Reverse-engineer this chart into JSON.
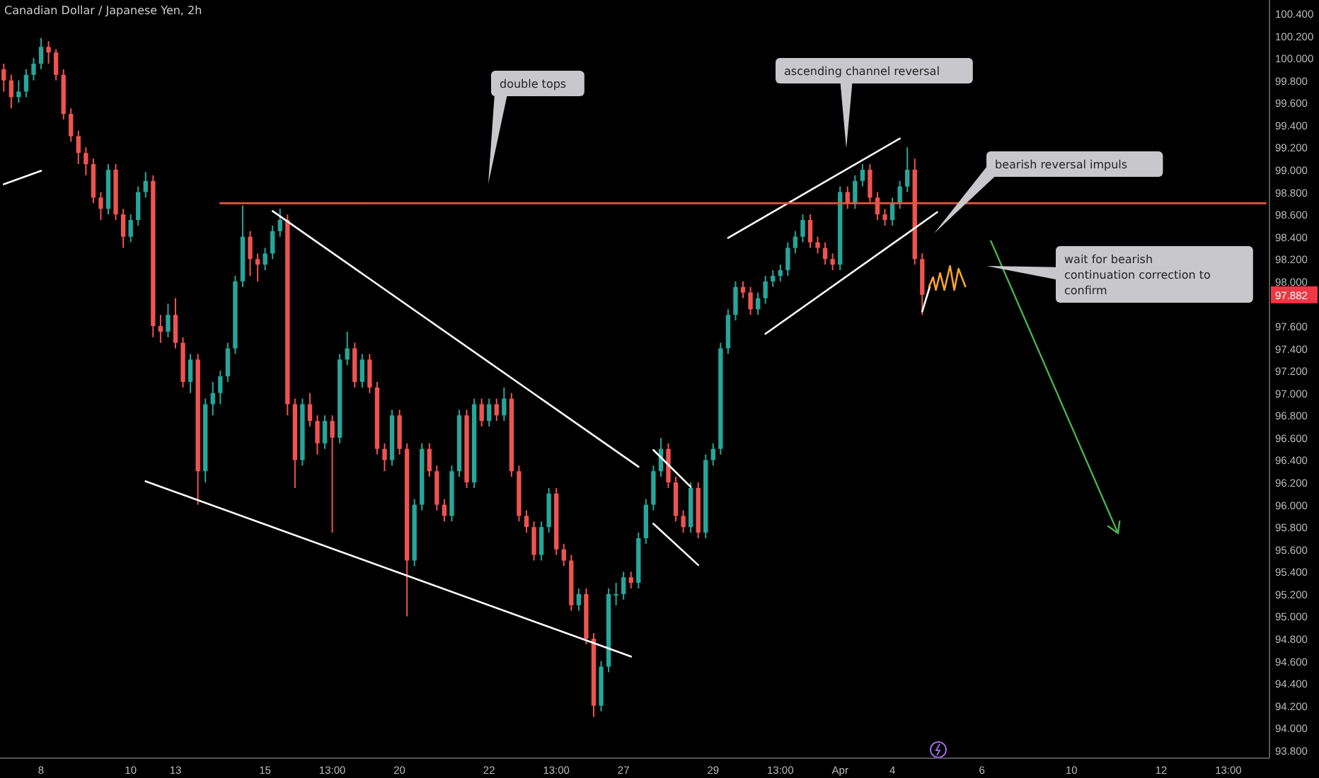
{
  "chart_data": {
    "type": "candlestick",
    "title": "Canadian Dollar / Japanese Yen, 2h",
    "categories": [
      null,
      null,
      null,
      null,
      null,
      "8",
      null,
      null,
      null,
      null,
      null,
      null,
      null,
      null,
      null,
      null,
      null,
      "10",
      null,
      null,
      null,
      null,
      null,
      "13",
      null,
      null,
      null,
      null,
      null,
      null,
      null,
      null,
      null,
      null,
      null,
      "15",
      null,
      null,
      null,
      null,
      null,
      null,
      null,
      null,
      "13:00",
      null,
      null,
      null,
      null,
      null,
      null,
      null,
      null,
      "20",
      null,
      null,
      null,
      null,
      null,
      null,
      null,
      null,
      null,
      null,
      null,
      "22",
      null,
      null,
      null,
      null,
      null,
      null,
      null,
      null,
      "13:00",
      null,
      null,
      null,
      null,
      null,
      null,
      null,
      null,
      "27",
      null,
      null,
      null,
      null,
      null,
      null,
      null,
      null,
      null,
      null,
      null,
      "29",
      null,
      null,
      null,
      null,
      null,
      null,
      null,
      null,
      "13:00",
      null,
      null,
      null,
      null,
      null,
      null,
      null,
      "Apr",
      null,
      null,
      null,
      null,
      null,
      null,
      "4",
      null,
      null,
      null,
      null,
      null,
      null,
      null,
      null,
      null,
      null,
      null,
      "6",
      null,
      null,
      null,
      null,
      null,
      null,
      null,
      null,
      null,
      null,
      null,
      "10",
      null,
      null,
      null,
      null,
      null,
      null,
      null,
      null,
      null,
      null,
      null,
      "12",
      null,
      null,
      null,
      null,
      null,
      null,
      null,
      null,
      "13:00",
      null,
      null,
      null,
      null,
      null
    ],
    "ohlc": [
      [
        99.9,
        99.95,
        99.7,
        99.8
      ],
      [
        99.8,
        99.85,
        99.55,
        99.65
      ],
      [
        99.65,
        99.8,
        99.6,
        99.7
      ],
      [
        99.7,
        99.9,
        99.65,
        99.85
      ],
      [
        99.85,
        100.0,
        99.8,
        99.95
      ],
      [
        99.95,
        100.18,
        99.9,
        100.1
      ],
      [
        100.1,
        100.15,
        99.95,
        100.05
      ],
      [
        100.05,
        100.08,
        99.8,
        99.85
      ],
      [
        99.85,
        99.9,
        99.45,
        99.5
      ],
      [
        99.5,
        99.55,
        99.25,
        99.3
      ],
      [
        99.3,
        99.35,
        99.05,
        99.15
      ],
      [
        99.15,
        99.2,
        98.95,
        99.05
      ],
      [
        99.05,
        99.1,
        98.7,
        98.75
      ],
      [
        98.75,
        98.8,
        98.55,
        98.65
      ],
      [
        98.65,
        99.05,
        98.6,
        99.0
      ],
      [
        99.0,
        99.05,
        98.55,
        98.6
      ],
      [
        98.6,
        98.65,
        98.3,
        98.4
      ],
      [
        98.4,
        98.6,
        98.35,
        98.55
      ],
      [
        98.55,
        98.85,
        98.5,
        98.8
      ],
      [
        98.8,
        98.98,
        98.75,
        98.9
      ],
      [
        98.9,
        98.95,
        97.5,
        97.6
      ],
      [
        97.6,
        97.7,
        97.45,
        97.55
      ],
      [
        97.55,
        97.8,
        97.5,
        97.7
      ],
      [
        97.7,
        97.85,
        97.4,
        97.45
      ],
      [
        97.45,
        97.5,
        97.05,
        97.1
      ],
      [
        97.1,
        97.35,
        97.0,
        97.3
      ],
      [
        97.3,
        97.35,
        96.0,
        96.3
      ],
      [
        96.3,
        96.95,
        96.2,
        96.9
      ],
      [
        96.9,
        97.1,
        96.8,
        97.0
      ],
      [
        97.0,
        97.2,
        96.9,
        97.15
      ],
      [
        97.15,
        97.45,
        97.1,
        97.4
      ],
      [
        97.4,
        98.05,
        97.35,
        98.0
      ],
      [
        98.0,
        98.68,
        97.95,
        98.4
      ],
      [
        98.4,
        98.45,
        98.05,
        98.2
      ],
      [
        98.2,
        98.25,
        98.0,
        98.15
      ],
      [
        98.15,
        98.3,
        98.1,
        98.25
      ],
      [
        98.25,
        98.5,
        98.2,
        98.45
      ],
      [
        98.45,
        98.65,
        98.4,
        98.55
      ],
      [
        98.55,
        98.6,
        96.8,
        96.9
      ],
      [
        96.9,
        96.95,
        96.15,
        96.4
      ],
      [
        96.4,
        96.95,
        96.35,
        96.9
      ],
      [
        96.9,
        97.0,
        96.7,
        96.75
      ],
      [
        96.75,
        96.8,
        96.45,
        96.55
      ],
      [
        96.55,
        96.8,
        96.5,
        96.75
      ],
      [
        96.75,
        96.8,
        95.75,
        96.6
      ],
      [
        96.6,
        97.35,
        96.55,
        97.3
      ],
      [
        97.3,
        97.55,
        97.25,
        97.4
      ],
      [
        97.4,
        97.45,
        97.05,
        97.1
      ],
      [
        97.1,
        97.35,
        97.05,
        97.3
      ],
      [
        97.3,
        97.35,
        97.0,
        97.05
      ],
      [
        97.05,
        97.1,
        96.45,
        96.5
      ],
      [
        96.5,
        96.55,
        96.3,
        96.4
      ],
      [
        96.4,
        96.85,
        96.35,
        96.8
      ],
      [
        96.8,
        96.85,
        96.45,
        96.5
      ],
      [
        96.5,
        96.55,
        95.0,
        95.5
      ],
      [
        95.5,
        96.05,
        95.45,
        96.0
      ],
      [
        96.0,
        96.55,
        95.95,
        96.5
      ],
      [
        96.5,
        96.55,
        96.25,
        96.3
      ],
      [
        96.3,
        96.35,
        95.95,
        96.0
      ],
      [
        96.0,
        96.05,
        95.85,
        95.9
      ],
      [
        95.9,
        96.35,
        95.85,
        96.3
      ],
      [
        96.3,
        96.85,
        96.25,
        96.8
      ],
      [
        96.8,
        96.85,
        96.15,
        96.2
      ],
      [
        96.2,
        96.95,
        96.15,
        96.9
      ],
      [
        96.9,
        96.95,
        96.7,
        96.75
      ],
      [
        96.75,
        96.95,
        96.7,
        96.9
      ],
      [
        96.9,
        96.95,
        96.75,
        96.8
      ],
      [
        96.8,
        97.05,
        96.75,
        96.95
      ],
      [
        96.95,
        97.0,
        96.25,
        96.3
      ],
      [
        96.3,
        96.35,
        95.85,
        95.9
      ],
      [
        95.9,
        95.95,
        95.75,
        95.8
      ],
      [
        95.8,
        95.85,
        95.5,
        95.55
      ],
      [
        95.55,
        95.85,
        95.5,
        95.8
      ],
      [
        95.8,
        96.15,
        95.75,
        96.1
      ],
      [
        96.1,
        96.15,
        95.55,
        95.6
      ],
      [
        95.6,
        95.65,
        95.45,
        95.5
      ],
      [
        95.5,
        95.55,
        95.05,
        95.1
      ],
      [
        95.1,
        95.25,
        95.05,
        95.2
      ],
      [
        95.2,
        95.25,
        94.75,
        94.8
      ],
      [
        94.8,
        94.85,
        94.1,
        94.2
      ],
      [
        94.2,
        94.6,
        94.15,
        94.55
      ],
      [
        94.55,
        95.25,
        94.5,
        95.2
      ],
      [
        95.2,
        95.3,
        95.1,
        95.2
      ],
      [
        95.2,
        95.4,
        95.15,
        95.35
      ],
      [
        95.35,
        95.4,
        95.25,
        95.3
      ],
      [
        95.3,
        95.75,
        95.25,
        95.7
      ],
      [
        95.7,
        96.05,
        95.65,
        96.0
      ],
      [
        96.0,
        96.35,
        95.95,
        96.3
      ],
      [
        96.3,
        96.6,
        96.25,
        96.5
      ],
      [
        96.5,
        96.55,
        96.15,
        96.2
      ],
      [
        96.2,
        96.25,
        95.85,
        95.9
      ],
      [
        95.9,
        95.95,
        95.75,
        95.8
      ],
      [
        95.8,
        96.2,
        95.75,
        96.15
      ],
      [
        96.15,
        96.2,
        95.7,
        95.75
      ],
      [
        95.75,
        96.45,
        95.7,
        96.4
      ],
      [
        96.4,
        96.55,
        96.35,
        96.5
      ],
      [
        96.5,
        97.45,
        96.45,
        97.4
      ],
      [
        97.4,
        97.75,
        97.35,
        97.7
      ],
      [
        97.7,
        98.0,
        97.65,
        97.95
      ],
      [
        97.95,
        98.0,
        97.85,
        97.9
      ],
      [
        97.9,
        97.95,
        97.7,
        97.75
      ],
      [
        97.75,
        97.9,
        97.7,
        97.85
      ],
      [
        97.85,
        98.05,
        97.8,
        98.0
      ],
      [
        98.0,
        98.1,
        97.95,
        98.05
      ],
      [
        98.05,
        98.15,
        98.0,
        98.1
      ],
      [
        98.1,
        98.35,
        98.05,
        98.3
      ],
      [
        98.3,
        98.45,
        98.25,
        98.4
      ],
      [
        98.4,
        98.6,
        98.35,
        98.55
      ],
      [
        98.55,
        98.6,
        98.3,
        98.35
      ],
      [
        98.35,
        98.4,
        98.25,
        98.3
      ],
      [
        98.3,
        98.35,
        98.15,
        98.2
      ],
      [
        98.2,
        98.25,
        98.1,
        98.15
      ],
      [
        98.15,
        98.85,
        98.1,
        98.8
      ],
      [
        98.8,
        98.85,
        98.65,
        98.7
      ],
      [
        98.7,
        98.95,
        98.65,
        98.9
      ],
      [
        98.9,
        99.05,
        98.85,
        99.0
      ],
      [
        99.0,
        99.05,
        98.7,
        98.75
      ],
      [
        98.75,
        98.8,
        98.55,
        98.6
      ],
      [
        98.6,
        98.65,
        98.5,
        98.55
      ],
      [
        98.55,
        98.75,
        98.5,
        98.7
      ],
      [
        98.7,
        98.9,
        98.65,
        98.85
      ],
      [
        98.85,
        99.2,
        98.8,
        99.0
      ],
      [
        99.0,
        99.1,
        98.15,
        98.2
      ],
      [
        98.2,
        98.25,
        97.7,
        97.88
      ],
      null,
      null,
      null,
      null,
      null,
      null,
      null,
      null,
      null,
      null,
      null,
      null,
      null,
      null,
      null,
      null,
      null,
      null,
      null,
      null,
      null,
      null,
      null,
      null,
      null,
      null,
      null,
      null,
      null,
      null,
      null,
      null,
      null,
      null,
      null,
      null,
      null,
      null,
      null,
      null,
      null,
      null,
      null,
      null,
      null,
      null
    ],
    "series": [
      {
        "type": "line",
        "color": "#ffffff",
        "values": [
          98.87,
          null,
          null,
          null,
          null,
          98.99,
          null,
          null,
          null,
          null,
          null,
          null,
          null,
          null,
          null,
          null,
          null,
          null,
          null,
          null,
          null,
          null,
          null,
          null,
          null,
          null,
          null,
          null,
          null,
          null,
          null,
          null,
          null,
          null,
          null,
          null,
          null,
          null,
          null,
          null,
          null,
          null,
          null,
          null,
          null,
          null,
          null,
          null,
          null,
          null,
          null,
          null,
          null,
          null,
          null,
          null,
          null,
          null,
          null,
          null,
          null,
          null,
          null,
          null,
          null,
          null,
          null,
          null,
          null,
          null,
          null,
          null,
          null,
          null,
          null,
          null,
          null,
          null,
          null,
          null,
          null,
          null,
          null,
          null,
          null,
          null,
          null,
          null,
          null,
          null,
          null,
          null,
          null,
          null,
          null,
          null,
          null,
          null,
          null,
          null,
          null,
          null,
          null,
          null,
          null,
          null,
          null,
          null,
          null,
          null,
          null,
          null,
          null,
          null,
          null,
          null,
          null,
          null,
          null,
          null,
          null,
          null,
          null,
          null,
          null,
          null,
          null,
          null,
          null,
          null,
          null,
          null,
          null,
          null,
          null,
          null,
          null,
          null,
          null,
          null,
          null,
          null,
          null,
          null,
          null,
          null,
          null,
          null,
          null,
          null,
          null,
          null,
          null,
          null,
          null,
          null,
          null,
          null,
          null,
          null,
          null,
          null,
          null,
          null,
          null,
          null,
          null,
          null,
          null,
          null
        ]
      },
      {
        "type": "line",
        "color": "#ffffff",
        "values": [
          null,
          null,
          null,
          null,
          null,
          null,
          null,
          null,
          null,
          null,
          null,
          null,
          null,
          null,
          null,
          null,
          null,
          null,
          null,
          96.21,
          null,
          null,
          null,
          null,
          null,
          null,
          null,
          null,
          null,
          null,
          null,
          null,
          null,
          null,
          null,
          null,
          null,
          null,
          null,
          null,
          null,
          null,
          null,
          null,
          null,
          null,
          null,
          null,
          null,
          null,
          null,
          null,
          null,
          null,
          null,
          null,
          null,
          null,
          null,
          null,
          null,
          null,
          null,
          null,
          null,
          null,
          null,
          null,
          null,
          null,
          null,
          null,
          null,
          null,
          null,
          null,
          null,
          null,
          null,
          null,
          null,
          null,
          null,
          null,
          94.64,
          null,
          null,
          null,
          null,
          null,
          null,
          null,
          null,
          null,
          null,
          null,
          null,
          null,
          null,
          null,
          null,
          null,
          null,
          null,
          null,
          null,
          null,
          null,
          null,
          null,
          null,
          null,
          null,
          null,
          null,
          null,
          null,
          null,
          null,
          null,
          null,
          null,
          null,
          null,
          null,
          null,
          null,
          null,
          null,
          null,
          null,
          null,
          null,
          null,
          null,
          null,
          null,
          null,
          null,
          null,
          null,
          null,
          null,
          null,
          null,
          null,
          null,
          null,
          null,
          null,
          null,
          null,
          null,
          null,
          null,
          null,
          null,
          null,
          null,
          null,
          null,
          null,
          null,
          null,
          null,
          null,
          null,
          null,
          null,
          null
        ]
      },
      {
        "type": "line",
        "color": "#ffffff",
        "values": [
          null,
          null,
          null,
          null,
          null,
          null,
          null,
          null,
          null,
          null,
          null,
          null,
          null,
          null,
          null,
          null,
          null,
          null,
          null,
          null,
          null,
          null,
          null,
          null,
          null,
          null,
          null,
          null,
          null,
          null,
          null,
          null,
          null,
          null,
          null,
          null,
          98.63,
          null,
          null,
          null,
          null,
          null,
          null,
          null,
          null,
          null,
          null,
          null,
          null,
          null,
          null,
          null,
          null,
          null,
          null,
          null,
          null,
          null,
          null,
          null,
          null,
          null,
          null,
          null,
          null,
          null,
          null,
          null,
          null,
          null,
          null,
          null,
          null,
          null,
          null,
          null,
          null,
          null,
          null,
          null,
          null,
          null,
          null,
          null,
          null,
          96.34,
          null,
          null,
          null,
          null,
          null,
          null,
          null,
          null,
          null,
          null,
          null,
          null,
          null,
          null,
          null,
          null,
          null,
          null,
          null,
          null,
          null,
          null,
          null,
          null,
          null,
          null,
          null,
          null,
          null,
          null,
          null,
          null,
          null,
          null,
          null,
          null,
          null,
          null,
          null,
          null,
          null,
          null,
          null,
          null,
          null,
          null,
          null,
          null,
          null,
          null,
          null,
          null,
          null,
          null,
          null,
          null,
          null,
          null,
          null,
          null,
          null,
          null,
          null,
          null,
          null,
          null,
          null,
          null,
          null,
          null,
          null,
          null,
          null,
          null,
          null,
          null,
          null,
          null,
          null,
          null,
          null,
          null,
          null,
          null
        ]
      },
      {
        "type": "line",
        "color": "#ffffff",
        "values": [
          null,
          null,
          null,
          null,
          null,
          null,
          null,
          null,
          null,
          null,
          null,
          null,
          null,
          null,
          null,
          null,
          null,
          null,
          null,
          null,
          null,
          null,
          null,
          null,
          null,
          null,
          null,
          null,
          null,
          null,
          null,
          null,
          null,
          null,
          null,
          null,
          null,
          null,
          null,
          null,
          null,
          null,
          null,
          null,
          null,
          null,
          null,
          null,
          null,
          null,
          null,
          null,
          null,
          null,
          null,
          null,
          null,
          null,
          null,
          null,
          null,
          null,
          null,
          null,
          null,
          null,
          null,
          null,
          null,
          null,
          null,
          null,
          null,
          null,
          null,
          null,
          null,
          null,
          null,
          null,
          null,
          null,
          null,
          null,
          null,
          null,
          null,
          96.49,
          null,
          null,
          null,
          null,
          96.16,
          null,
          null,
          null,
          null,
          null,
          null,
          null,
          null,
          null,
          null,
          null,
          null,
          null,
          null,
          null,
          null,
          null,
          null,
          null,
          null,
          null,
          null,
          null,
          null,
          null,
          null,
          null,
          null,
          null,
          null,
          null,
          null,
          null,
          null,
          null,
          null,
          null,
          null,
          null,
          null,
          null,
          null,
          null,
          null,
          null,
          null,
          null,
          null,
          null,
          null,
          null,
          null,
          null,
          null,
          null,
          null,
          null,
          null,
          null,
          null,
          null,
          null,
          null,
          null,
          null,
          null,
          null,
          null,
          null,
          null,
          null,
          null,
          null,
          null,
          null,
          null,
          null
        ]
      },
      {
        "type": "line",
        "color": "#ffffff",
        "values": [
          null,
          null,
          null,
          null,
          null,
          null,
          null,
          null,
          null,
          null,
          null,
          null,
          null,
          null,
          null,
          null,
          null,
          null,
          null,
          null,
          null,
          null,
          null,
          null,
          null,
          null,
          null,
          null,
          null,
          null,
          null,
          null,
          null,
          null,
          null,
          null,
          null,
          null,
          null,
          null,
          null,
          null,
          null,
          null,
          null,
          null,
          null,
          null,
          null,
          null,
          null,
          null,
          null,
          null,
          null,
          null,
          null,
          null,
          null,
          null,
          null,
          null,
          null,
          null,
          null,
          null,
          null,
          null,
          null,
          null,
          null,
          null,
          null,
          null,
          null,
          null,
          null,
          null,
          null,
          null,
          null,
          null,
          null,
          null,
          null,
          null,
          null,
          95.83,
          null,
          null,
          null,
          null,
          null,
          95.46,
          null,
          null,
          null,
          null,
          null,
          null,
          null,
          null,
          null,
          null,
          null,
          null,
          null,
          null,
          null,
          null,
          null,
          null,
          null,
          null,
          null,
          null,
          null,
          null,
          null,
          null,
          null,
          null,
          null,
          null,
          null,
          null,
          null,
          null,
          null,
          null,
          null,
          null,
          null,
          null,
          null,
          null,
          null,
          null,
          null,
          null,
          null,
          null,
          null,
          null,
          null,
          null,
          null,
          null,
          null,
          null,
          null,
          null,
          null,
          null,
          null,
          null,
          null,
          null,
          null,
          null,
          null,
          null,
          null,
          null,
          null,
          null,
          null,
          null,
          null,
          null
        ]
      },
      {
        "type": "line",
        "color": "#ffffff",
        "values": [
          null,
          null,
          null,
          null,
          null,
          null,
          null,
          null,
          null,
          null,
          null,
          null,
          null,
          null,
          null,
          null,
          null,
          null,
          null,
          null,
          null,
          null,
          null,
          null,
          null,
          null,
          null,
          null,
          null,
          null,
          null,
          null,
          null,
          null,
          null,
          null,
          null,
          null,
          null,
          null,
          null,
          null,
          null,
          null,
          null,
          null,
          null,
          null,
          null,
          null,
          null,
          null,
          null,
          null,
          null,
          null,
          null,
          null,
          null,
          null,
          null,
          null,
          null,
          null,
          null,
          null,
          null,
          null,
          null,
          null,
          null,
          null,
          null,
          null,
          null,
          null,
          null,
          null,
          null,
          null,
          null,
          null,
          null,
          null,
          null,
          null,
          null,
          null,
          null,
          null,
          null,
          null,
          null,
          null,
          null,
          null,
          null,
          98.39,
          null,
          null,
          null,
          null,
          null,
          null,
          null,
          null,
          null,
          null,
          null,
          null,
          null,
          null,
          null,
          null,
          null,
          null,
          null,
          null,
          null,
          null,
          99.28,
          null,
          null,
          null,
          null,
          null,
          null,
          null,
          null,
          null,
          null,
          null,
          null,
          null,
          null,
          null,
          null,
          null,
          null,
          null,
          null,
          null,
          null,
          null,
          null,
          null,
          null,
          null,
          null,
          null,
          null,
          null,
          null,
          null,
          null,
          null,
          null,
          null,
          null,
          null,
          null,
          null,
          null,
          null,
          null,
          null,
          null,
          null,
          null,
          null
        ]
      },
      {
        "type": "line",
        "color": "#ffffff",
        "values": [
          null,
          null,
          null,
          null,
          null,
          null,
          null,
          null,
          null,
          null,
          null,
          null,
          null,
          null,
          null,
          null,
          null,
          null,
          null,
          null,
          null,
          null,
          null,
          null,
          null,
          null,
          null,
          null,
          null,
          null,
          null,
          null,
          null,
          null,
          null,
          null,
          null,
          null,
          null,
          null,
          null,
          null,
          null,
          null,
          null,
          null,
          null,
          null,
          null,
          null,
          null,
          null,
          null,
          null,
          null,
          null,
          null,
          null,
          null,
          null,
          null,
          null,
          null,
          null,
          null,
          null,
          null,
          null,
          null,
          null,
          null,
          null,
          null,
          null,
          null,
          null,
          null,
          null,
          null,
          null,
          null,
          null,
          null,
          null,
          null,
          null,
          null,
          null,
          null,
          null,
          null,
          null,
          null,
          null,
          null,
          null,
          null,
          null,
          null,
          null,
          null,
          null,
          97.53,
          null,
          null,
          null,
          null,
          null,
          null,
          null,
          null,
          null,
          null,
          null,
          null,
          null,
          null,
          null,
          null,
          null,
          null,
          null,
          null,
          null,
          null,
          98.62,
          null,
          null,
          null,
          null,
          null,
          null,
          null,
          null,
          null,
          null,
          null,
          null,
          null,
          null,
          null,
          null,
          null,
          null,
          null,
          null,
          null,
          null,
          null,
          null,
          null,
          null,
          null,
          null,
          null,
          null,
          null,
          null,
          null,
          null,
          null,
          null,
          null,
          null,
          null,
          null,
          null,
          null,
          null,
          null
        ]
      },
      {
        "type": "line",
        "color": "#ffffff",
        "values": [
          null,
          null,
          null,
          null,
          null,
          null,
          null,
          null,
          null,
          null,
          null,
          null,
          null,
          null,
          null,
          null,
          null,
          null,
          null,
          null,
          null,
          null,
          null,
          null,
          null,
          null,
          null,
          null,
          null,
          null,
          null,
          null,
          null,
          null,
          null,
          null,
          null,
          null,
          null,
          null,
          null,
          null,
          null,
          null,
          null,
          null,
          null,
          null,
          null,
          null,
          null,
          null,
          null,
          null,
          null,
          null,
          null,
          null,
          null,
          null,
          null,
          null,
          null,
          null,
          null,
          null,
          null,
          null,
          null,
          null,
          null,
          null,
          null,
          null,
          null,
          null,
          null,
          null,
          null,
          null,
          null,
          null,
          null,
          null,
          null,
          null,
          null,
          null,
          null,
          null,
          null,
          null,
          null,
          null,
          null,
          null,
          null,
          null,
          null,
          null,
          null,
          null,
          null,
          null,
          null,
          null,
          null,
          null,
          null,
          null,
          null,
          null,
          null,
          null,
          null,
          null,
          null,
          null,
          null,
          null,
          null,
          null,
          null,
          97.73,
          97.95,
          null,
          null,
          null,
          null,
          null,
          null,
          null,
          null,
          null,
          null,
          null,
          null,
          null,
          null,
          null,
          null,
          null,
          null,
          null,
          null,
          null,
          null,
          null,
          null,
          null,
          null,
          null,
          null,
          null,
          null,
          null,
          null,
          null,
          null,
          null,
          null,
          null,
          null,
          null,
          null,
          null,
          null,
          null,
          null,
          null
        ]
      },
      {
        "type": "line",
        "color": "#e8553e",
        "values": [
          null,
          null,
          null,
          null,
          null,
          null,
          null,
          null,
          null,
          null,
          null,
          null,
          null,
          null,
          null,
          null,
          null,
          null,
          null,
          null,
          null,
          null,
          null,
          null,
          null,
          null,
          null,
          null,
          null,
          98.7,
          null,
          null,
          null,
          null,
          null,
          null,
          null,
          null,
          null,
          null,
          null,
          null,
          null,
          null,
          null,
          null,
          null,
          null,
          null,
          null,
          null,
          null,
          null,
          null,
          null,
          null,
          null,
          null,
          null,
          null,
          null,
          null,
          null,
          null,
          null,
          null,
          null,
          null,
          null,
          null,
          null,
          null,
          null,
          null,
          null,
          null,
          null,
          null,
          null,
          null,
          null,
          null,
          null,
          null,
          null,
          null,
          null,
          null,
          null,
          null,
          null,
          null,
          null,
          null,
          null,
          null,
          null,
          null,
          null,
          null,
          null,
          null,
          null,
          null,
          null,
          null,
          null,
          null,
          null,
          null,
          null,
          null,
          null,
          null,
          null,
          null,
          null,
          null,
          null,
          null,
          null,
          null,
          null,
          null,
          null,
          null,
          null,
          null,
          null,
          null,
          null,
          null,
          null,
          null,
          null,
          null,
          null,
          null,
          null,
          null,
          null,
          null,
          null,
          null,
          null,
          null,
          null,
          null,
          null,
          null,
          null,
          null,
          null,
          null,
          null,
          null,
          null,
          null,
          null,
          null,
          null,
          null,
          null,
          null,
          null,
          null,
          null,
          null,
          null,
          98.7
        ]
      }
    ],
    "annotations": [
      "double tops",
      "ascending channel reversal",
      "bearish reversal impuls",
      "wait for bearish continuation correction to confirm",
      "97.882"
    ],
    "ylim": [
      93.73,
      100.52
    ],
    "yticks": [
      {
        "value": 93.8,
        "label": "93.800"
      },
      {
        "value": 94.0,
        "label": "94.000"
      },
      {
        "value": 94.2,
        "label": "94.200"
      },
      {
        "value": 94.4,
        "label": "94.400"
      },
      {
        "value": 94.6,
        "label": "94.600"
      },
      {
        "value": 94.8,
        "label": "94.800"
      },
      {
        "value": 95.0,
        "label": "95.000"
      },
      {
        "value": 95.2,
        "label": "95.200"
      },
      {
        "value": 95.4,
        "label": "95.400"
      },
      {
        "value": 95.6,
        "label": "95.600"
      },
      {
        "value": 95.8,
        "label": "95.800"
      },
      {
        "value": 96.0,
        "label": "96.000"
      },
      {
        "value": 96.2,
        "label": "96.200"
      },
      {
        "value": 96.4,
        "label": "96.400"
      },
      {
        "value": 96.6,
        "label": "96.600"
      },
      {
        "value": 96.8,
        "label": "96.800"
      },
      {
        "value": 97.0,
        "label": "97.000"
      },
      {
        "value": 97.2,
        "label": "97.200"
      },
      {
        "value": 97.4,
        "label": "97.400"
      },
      {
        "value": 97.6,
        "label": "97.600"
      },
      {
        "value": 98.0,
        "label": "98.000"
      },
      {
        "value": 98.2,
        "label": "98.200"
      },
      {
        "value": 98.4,
        "label": "98.400"
      },
      {
        "value": 98.6,
        "label": "98.600"
      },
      {
        "value": 98.8,
        "label": "98.800"
      },
      {
        "value": 99.0,
        "label": "99.000"
      },
      {
        "value": 99.2,
        "label": "99.200"
      },
      {
        "value": 99.4,
        "label": "99.400"
      },
      {
        "value": 99.6,
        "label": "99.600"
      },
      {
        "value": 99.8,
        "label": "99.800"
      },
      {
        "value": 100.0,
        "label": "100.000"
      },
      {
        "value": 100.2,
        "label": "100.200"
      },
      {
        "value": 100.4,
        "label": "100.400"
      }
    ],
    "grid": false
  }
}
